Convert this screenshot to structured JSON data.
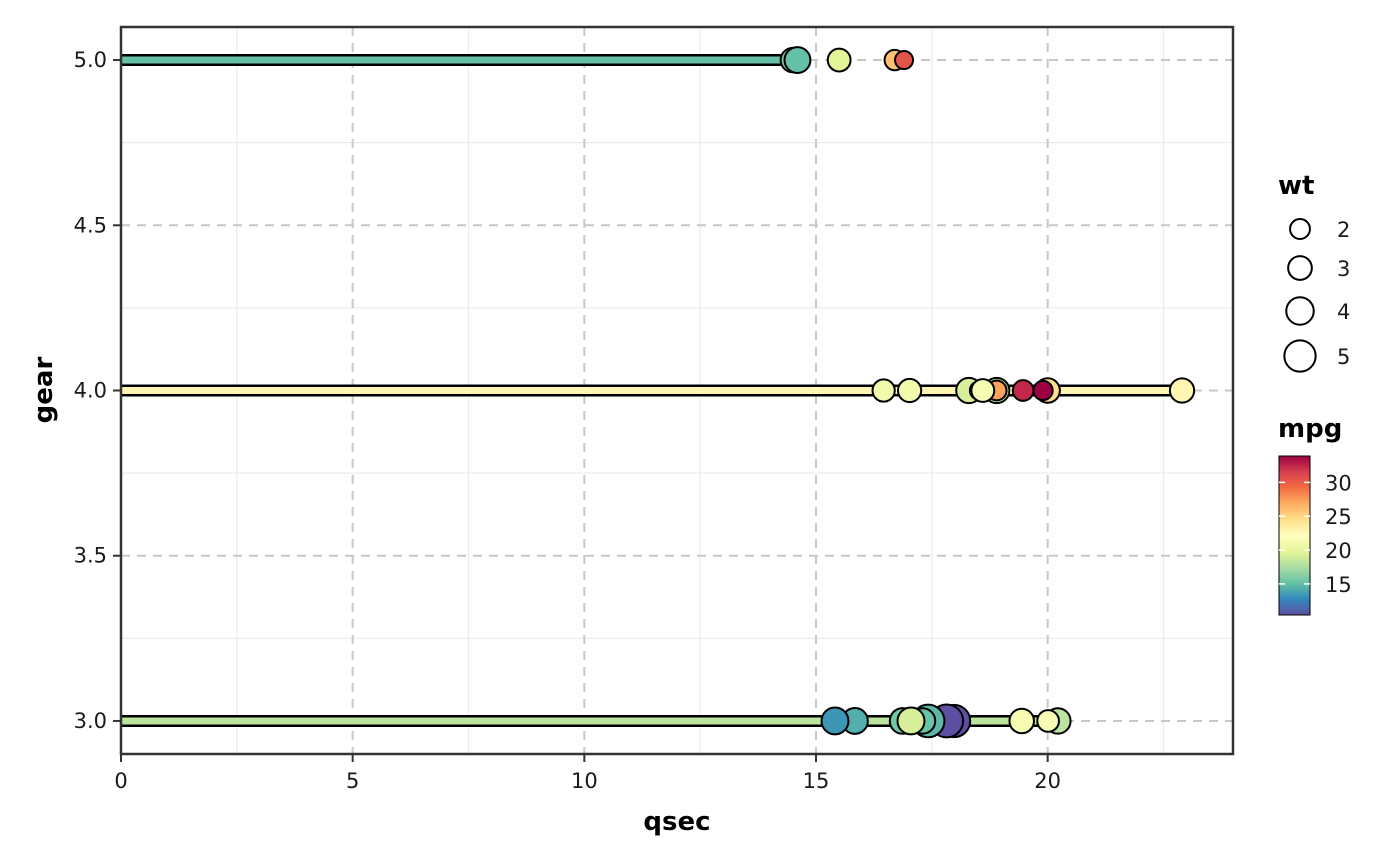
{
  "chart_data": {
    "type": "scatter",
    "title": "",
    "xlabel": "qsec",
    "ylabel": "gear",
    "xlim": [
      0,
      24
    ],
    "ylim": [
      2.9,
      5.1
    ],
    "x_ticks": [
      0,
      5,
      10,
      15,
      20
    ],
    "x_tick_labels": [
      "0",
      "5",
      "10",
      "15",
      "20"
    ],
    "y_ticks": [
      3.0,
      3.5,
      4.0,
      4.5,
      5.0
    ],
    "y_tick_labels": [
      "3.0",
      "3.5",
      "4.0",
      "4.5",
      "5.0"
    ],
    "grid": true,
    "legend_position": "right",
    "segments": [
      {
        "gear": 3,
        "qsec_start": 0,
        "qsec_end": 20.22,
        "mpg": 18.1
      },
      {
        "gear": 4,
        "qsec_start": 0,
        "qsec_end": 22.9,
        "mpg": 22.8
      },
      {
        "gear": 5,
        "qsec_start": 0,
        "qsec_end": 14.6,
        "mpg": 15.0
      }
    ],
    "points": [
      {
        "gear": 3,
        "qsec": 19.44,
        "wt": 3.215,
        "mpg": 21.4
      },
      {
        "gear": 3,
        "qsec": 17.02,
        "wt": 3.44,
        "mpg": 18.7
      },
      {
        "gear": 3,
        "qsec": 20.22,
        "wt": 3.46,
        "mpg": 18.1
      },
      {
        "gear": 3,
        "qsec": 15.84,
        "wt": 3.57,
        "mpg": 14.3
      },
      {
        "gear": 3,
        "qsec": 17.4,
        "wt": 4.07,
        "mpg": 16.4
      },
      {
        "gear": 3,
        "qsec": 17.6,
        "wt": 3.73,
        "mpg": 17.3
      },
      {
        "gear": 3,
        "qsec": 18.0,
        "wt": 3.78,
        "mpg": 15.2
      },
      {
        "gear": 3,
        "qsec": 17.98,
        "wt": 5.25,
        "mpg": 10.4
      },
      {
        "gear": 3,
        "qsec": 17.82,
        "wt": 5.424,
        "mpg": 10.4
      },
      {
        "gear": 3,
        "qsec": 17.42,
        "wt": 5.345,
        "mpg": 14.7
      },
      {
        "gear": 3,
        "qsec": 20.01,
        "wt": 2.465,
        "mpg": 21.5
      },
      {
        "gear": 3,
        "qsec": 16.87,
        "wt": 3.52,
        "mpg": 15.5
      },
      {
        "gear": 3,
        "qsec": 17.3,
        "wt": 3.435,
        "mpg": 15.2
      },
      {
        "gear": 3,
        "qsec": 15.41,
        "wt": 3.84,
        "mpg": 13.3
      },
      {
        "gear": 3,
        "qsec": 17.05,
        "wt": 3.845,
        "mpg": 19.2
      },
      {
        "gear": 4,
        "qsec": 16.46,
        "wt": 2.62,
        "mpg": 21.0
      },
      {
        "gear": 4,
        "qsec": 17.02,
        "wt": 2.875,
        "mpg": 21.0
      },
      {
        "gear": 4,
        "qsec": 18.61,
        "wt": 2.32,
        "mpg": 22.8
      },
      {
        "gear": 4,
        "qsec": 20.0,
        "wt": 3.19,
        "mpg": 24.4
      },
      {
        "gear": 4,
        "qsec": 22.9,
        "wt": 3.15,
        "mpg": 22.8
      },
      {
        "gear": 4,
        "qsec": 18.3,
        "wt": 3.44,
        "mpg": 19.2
      },
      {
        "gear": 4,
        "qsec": 18.9,
        "wt": 3.44,
        "mpg": 17.8
      },
      {
        "gear": 4,
        "qsec": 19.47,
        "wt": 2.2,
        "mpg": 32.4
      },
      {
        "gear": 4,
        "qsec": 18.52,
        "wt": 1.615,
        "mpg": 30.4
      },
      {
        "gear": 4,
        "qsec": 19.9,
        "wt": 1.835,
        "mpg": 33.9
      },
      {
        "gear": 4,
        "qsec": 18.9,
        "wt": 1.935,
        "mpg": 27.3
      },
      {
        "gear": 4,
        "qsec": 18.6,
        "wt": 2.78,
        "mpg": 21.4
      },
      {
        "gear": 5,
        "qsec": 16.7,
        "wt": 2.14,
        "mpg": 26.0
      },
      {
        "gear": 5,
        "qsec": 16.9,
        "wt": 1.513,
        "mpg": 30.4
      },
      {
        "gear": 5,
        "qsec": 14.5,
        "wt": 3.17,
        "mpg": 15.8
      },
      {
        "gear": 5,
        "qsec": 15.5,
        "wt": 2.77,
        "mpg": 19.7
      },
      {
        "gear": 5,
        "qsec": 14.6,
        "wt": 3.57,
        "mpg": 15.0
      }
    ],
    "size_legend": {
      "title": "wt",
      "values": [
        2,
        3,
        4,
        5
      ],
      "labels": [
        "2",
        "3",
        "4",
        "5"
      ]
    },
    "color_legend": {
      "title": "mpg",
      "min": 10.4,
      "max": 33.9,
      "ticks": [
        15,
        20,
        25,
        30
      ],
      "tick_labels": [
        "15",
        "20",
        "25",
        "30"
      ],
      "palette": [
        "#5e4fa2",
        "#3288bd",
        "#66c2a5",
        "#abdda4",
        "#e6f598",
        "#ffffbf",
        "#fee08b",
        "#fdae61",
        "#f46d43",
        "#d53e4f",
        "#9e0142"
      ]
    }
  }
}
